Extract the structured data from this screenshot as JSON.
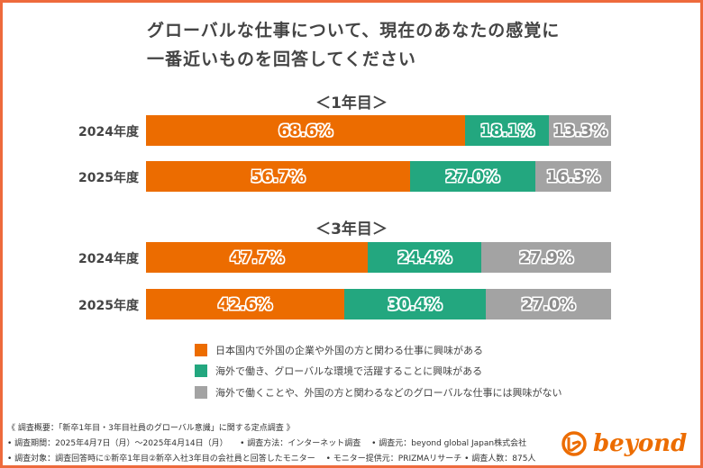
{
  "title_lines": [
    "グローバルな仕事について、現在のあなたの感覚に",
    "一番近いものを回答してください"
  ],
  "colors": {
    "orange": "#ec6c00",
    "green": "#23a77f",
    "gray": "#a3a3a3",
    "frame": "#ee6a3c"
  },
  "chart_data": {
    "type": "bar",
    "orientation": "horizontal-stacked-100",
    "legend_position": "bottom",
    "series": [
      {
        "name": "日本国内で外国の企業や外国の方と関わる仕事に興味がある",
        "color": "#ec6c00"
      },
      {
        "name": "海外で働き、グローバルな環境で活躍することに興味がある",
        "color": "#23a77f"
      },
      {
        "name": "海外で働くことや、外国の方と関わるなどのグローバルな仕事には興味がない",
        "color": "#a3a3a3"
      }
    ],
    "groups": [
      {
        "label": "＜1年目＞",
        "rows": [
          {
            "category": "2024年度",
            "values": [
              68.6,
              18.1,
              13.3
            ],
            "labels": [
              "68.6%",
              "18.1%",
              "13.3%"
            ]
          },
          {
            "category": "2025年度",
            "values": [
              56.7,
              27.0,
              16.3
            ],
            "labels": [
              "56.7%",
              "27.0%",
              "16.3%"
            ]
          }
        ]
      },
      {
        "label": "＜3年目＞",
        "rows": [
          {
            "category": "2024年度",
            "values": [
              47.7,
              24.4,
              27.9
            ],
            "labels": [
              "47.7%",
              "24.4%",
              "27.9%"
            ]
          },
          {
            "category": "2025年度",
            "values": [
              42.6,
              30.4,
              27.0
            ],
            "labels": [
              "42.6%",
              "30.4%",
              "27.0%"
            ]
          }
        ]
      }
    ]
  },
  "footer": [
    "《 調査概要：「新卒1年目・3年目社員のグローバル意識」に関する定点調査 》",
    "• 調査期間：2025年4月7日（月）～2025年4月14日（月）　　• 調査方法：インターネット調査　 • 調査元：beyond global Japan株式会社",
    "• 調査対象：調査回答時に①新卒1年目②新卒入社3年目の会社員と回答したモニター　 • モニター提供元：PRIZMAリサーチ • 調査人数：875人"
  ],
  "logo": {
    "text": "beyond"
  }
}
